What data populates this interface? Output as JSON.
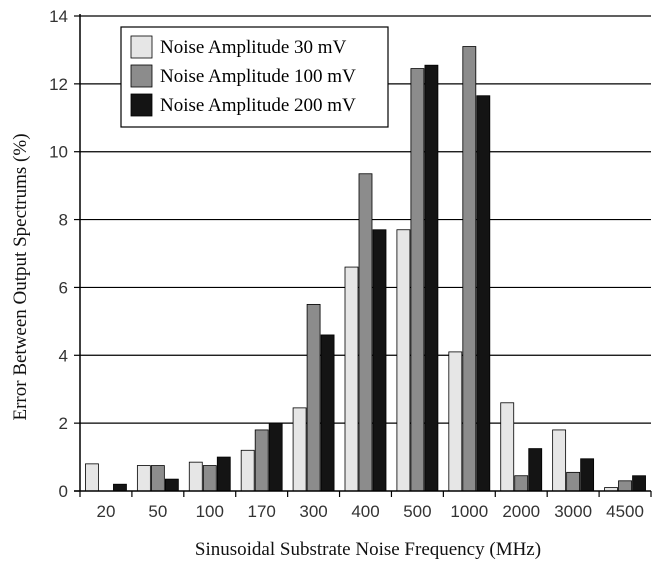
{
  "chart_data": {
    "type": "bar",
    "title": "",
    "xlabel": "Sinusoidal Substrate Noise Frequency (MHz)",
    "ylabel": "Error Between Output Spectrums (%)",
    "ylim": [
      0,
      14
    ],
    "yticks": [
      0,
      2,
      4,
      6,
      8,
      10,
      12,
      14
    ],
    "grid": true,
    "legend_position": "top-left",
    "categories": [
      "20",
      "50",
      "100",
      "170",
      "300",
      "400",
      "500",
      "1000",
      "2000",
      "3000",
      "4500"
    ],
    "series": [
      {
        "name": "Noise Amplitude 30 mV",
        "color": "#e6e6e6",
        "values": [
          0.8,
          0.75,
          0.85,
          1.2,
          2.45,
          6.6,
          7.7,
          4.1,
          2.6,
          1.8,
          0.1
        ]
      },
      {
        "name": "Noise Amplitude 100 mV",
        "color": "#8c8c8c",
        "values": [
          0.0,
          0.75,
          0.75,
          1.8,
          5.5,
          9.35,
          12.45,
          13.1,
          0.45,
          0.55,
          0.3
        ]
      },
      {
        "name": "Noise Amplitude 200 mV",
        "color": "#141414",
        "values": [
          0.2,
          0.35,
          1.0,
          2.0,
          4.6,
          7.7,
          12.55,
          11.65,
          1.25,
          0.95,
          0.45
        ]
      }
    ]
  }
}
